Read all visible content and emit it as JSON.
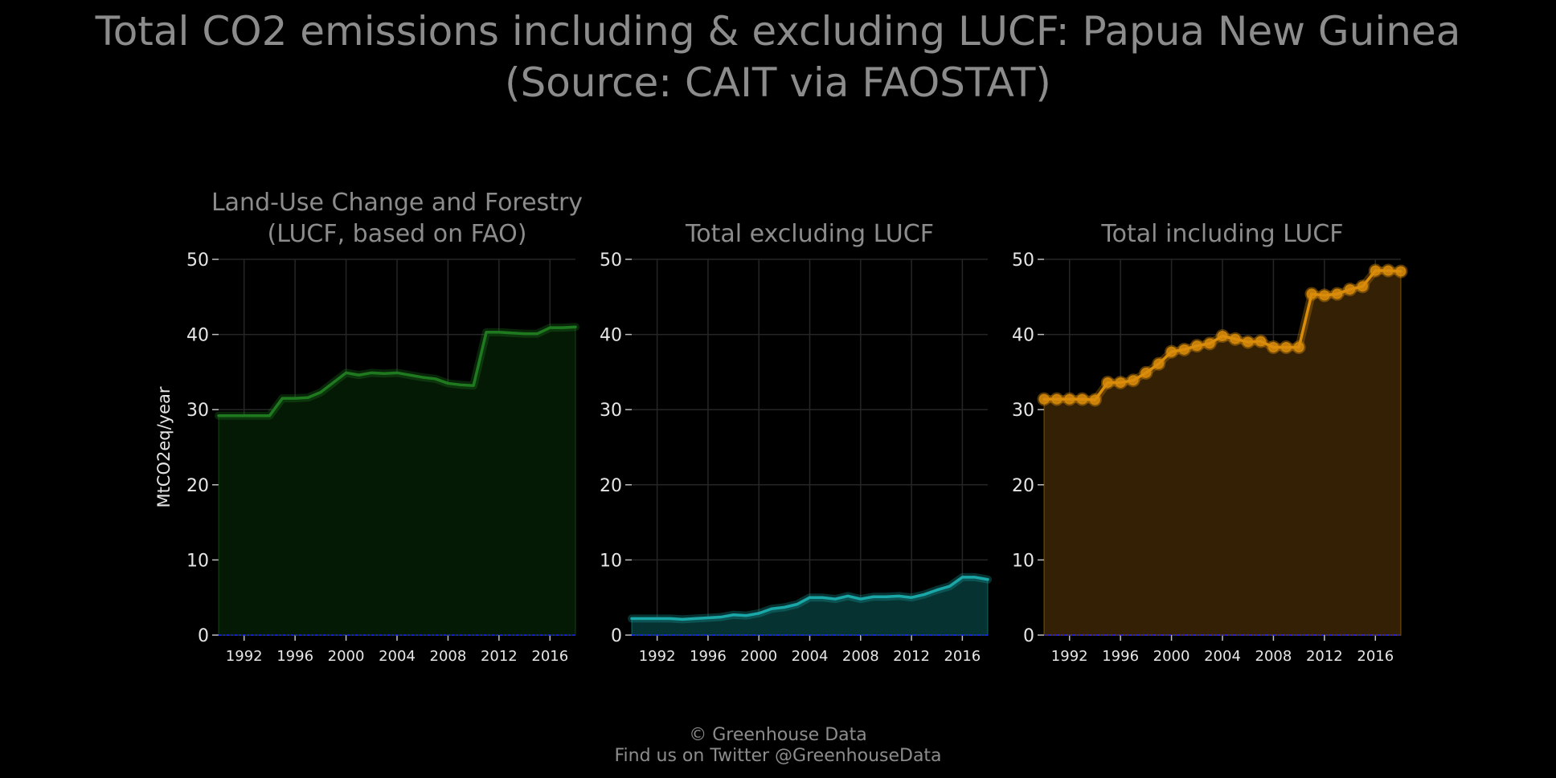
{
  "title": {
    "line1": "Total CO2 emissions including & excluding LUCF: Papua New Guinea",
    "line2": "(Source: CAIT via FAOSTAT)"
  },
  "footer": {
    "line1": "© Greenhouse Data",
    "line2": "Find us on Twitter @GreenhouseData"
  },
  "chart_data": [
    {
      "type": "area",
      "title": [
        "Land-Use Change and Forestry",
        "(LUCF, based on FAO)"
      ],
      "xlabel": "",
      "ylabel": "MtCO2eq/year",
      "ylim": [
        0,
        50
      ],
      "xlim": [
        1990,
        2018
      ],
      "yticks": [
        0,
        10,
        20,
        30,
        40,
        50
      ],
      "xticks": [
        1992,
        1996,
        2000,
        2004,
        2008,
        2012,
        2016
      ],
      "grid": true,
      "markers": false,
      "color": "#1f7a1f",
      "fill_color": "#051a05",
      "x": [
        1990,
        1991,
        1992,
        1993,
        1994,
        1995,
        1996,
        1997,
        1998,
        1999,
        2000,
        2001,
        2002,
        2003,
        2004,
        2005,
        2006,
        2007,
        2008,
        2009,
        2010,
        2011,
        2012,
        2013,
        2014,
        2015,
        2016,
        2017,
        2018
      ],
      "values": [
        29.2,
        29.2,
        29.2,
        29.2,
        29.2,
        31.5,
        31.5,
        31.6,
        32.3,
        33.6,
        34.9,
        34.6,
        34.9,
        34.8,
        34.9,
        34.6,
        34.3,
        34.1,
        33.5,
        33.3,
        33.2,
        40.3,
        40.3,
        40.2,
        40.1,
        40.1,
        40.9,
        40.9,
        41.0
      ]
    },
    {
      "type": "area",
      "title": [
        "Total excluding LUCF"
      ],
      "xlabel": "",
      "ylabel": "",
      "ylim": [
        0,
        50
      ],
      "xlim": [
        1990,
        2018
      ],
      "yticks": [
        0,
        10,
        20,
        30,
        40,
        50
      ],
      "xticks": [
        1992,
        1996,
        2000,
        2004,
        2008,
        2012,
        2016
      ],
      "grid": true,
      "markers": false,
      "color": "#1aa7a7",
      "fill_color": "#063232",
      "x": [
        1990,
        1991,
        1992,
        1993,
        1994,
        1995,
        1996,
        1997,
        1998,
        1999,
        2000,
        2001,
        2002,
        2003,
        2004,
        2005,
        2006,
        2007,
        2008,
        2009,
        2010,
        2011,
        2012,
        2013,
        2014,
        2015,
        2016,
        2017,
        2018
      ],
      "values": [
        2.2,
        2.2,
        2.2,
        2.2,
        2.1,
        2.2,
        2.3,
        2.4,
        2.7,
        2.6,
        2.9,
        3.5,
        3.7,
        4.1,
        5.0,
        5.0,
        4.8,
        5.2,
        4.8,
        5.1,
        5.1,
        5.2,
        5.0,
        5.4,
        6.0,
        6.5,
        7.7,
        7.7,
        7.4
      ]
    },
    {
      "type": "area",
      "title": [
        "Total including LUCF"
      ],
      "xlabel": "",
      "ylabel": "",
      "ylim": [
        0,
        50
      ],
      "xlim": [
        1990,
        2018
      ],
      "yticks": [
        0,
        10,
        20,
        30,
        40,
        50
      ],
      "xticks": [
        1992,
        1996,
        2000,
        2004,
        2008,
        2012,
        2016
      ],
      "grid": true,
      "markers": true,
      "color": "#d98c0a",
      "fill_color": "#332005",
      "x": [
        1990,
        1991,
        1992,
        1993,
        1994,
        1995,
        1996,
        1997,
        1998,
        1999,
        2000,
        2001,
        2002,
        2003,
        2004,
        2005,
        2006,
        2007,
        2008,
        2009,
        2010,
        2011,
        2012,
        2013,
        2014,
        2015,
        2016,
        2017,
        2018
      ],
      "values": [
        31.4,
        31.4,
        31.4,
        31.4,
        31.3,
        33.6,
        33.6,
        33.9,
        34.9,
        36.1,
        37.7,
        38.0,
        38.5,
        38.8,
        39.8,
        39.4,
        39.0,
        39.1,
        38.3,
        38.3,
        38.3,
        45.4,
        45.2,
        45.4,
        46.0,
        46.4,
        48.5,
        48.5,
        48.4
      ]
    }
  ]
}
